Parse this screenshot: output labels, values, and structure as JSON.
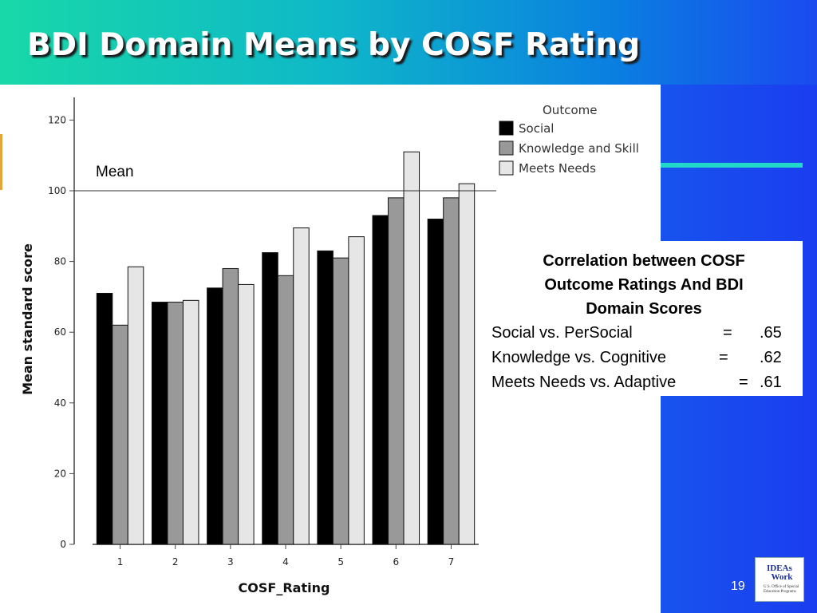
{
  "slide": {
    "title": "BDI Domain Means by COSF Rating",
    "page_number": "19",
    "logo_text": "IDEAs that Work",
    "logo_subtext": "U.S. Office of Special Education Programs"
  },
  "chart_data": {
    "type": "bar",
    "title": "",
    "xlabel": "COSF_Rating",
    "ylabel": "Mean standard score",
    "categories": [
      "1",
      "2",
      "3",
      "4",
      "5",
      "6",
      "7"
    ],
    "series": [
      {
        "name": "Social",
        "color": "#000000",
        "values": [
          71,
          68.5,
          72.5,
          82.5,
          83,
          93,
          92
        ]
      },
      {
        "name": "Knowledge and Skill",
        "color": "#999999",
        "values": [
          62,
          68.5,
          78,
          76,
          81,
          98,
          98
        ]
      },
      {
        "name": "Meets Needs",
        "color": "#e6e6e6",
        "values": [
          78.5,
          69,
          73.5,
          89.5,
          87,
          111,
          102
        ]
      }
    ],
    "ylim": [
      0,
      125
    ],
    "yticks": [
      0,
      20,
      40,
      60,
      80,
      100,
      120
    ],
    "legend_title": "Outcome",
    "legend_position": "top-right",
    "reference_line": {
      "value": 100,
      "label": "Mean"
    },
    "grid": false
  },
  "correlation_box": {
    "title_lines": [
      "Correlation between COSF",
      "Outcome Ratings And BDI",
      "Domain Scores"
    ],
    "rows": [
      {
        "label": "Social vs. PerSocial",
        "eq": "=",
        "value": ".65"
      },
      {
        "label": "Knowledge vs. Cognitive",
        "eq": "=",
        "value": ".62"
      },
      {
        "label": "Meets Needs vs. Adaptive",
        "eq": "=",
        "value": ".61"
      }
    ]
  },
  "colors": {
    "title_text": "#ffffff",
    "accent_line": "#22d8c8"
  }
}
